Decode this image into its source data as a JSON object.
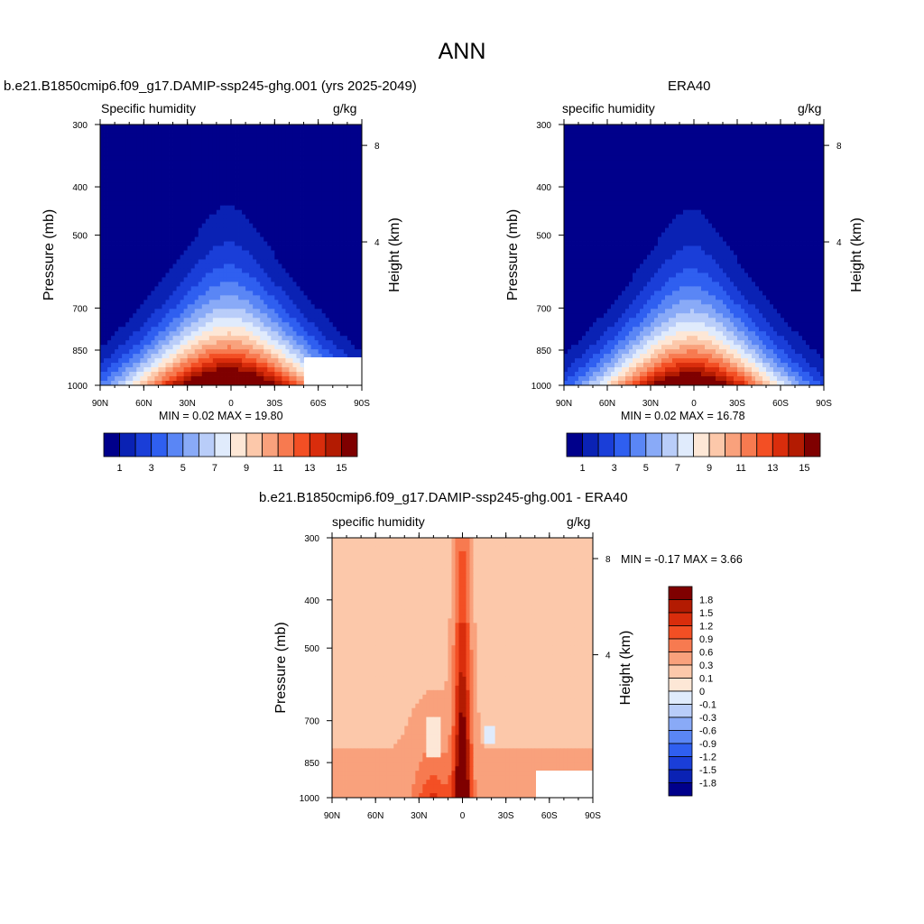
{
  "figure": {
    "title": "ANN",
    "panels": [
      {
        "id": "model",
        "title": "b.e21.B1850cmip6.f09_g17.DAMIP-ssp245-ghg.001 (yrs 2025-2049)",
        "left_label": "Specific humidity",
        "right_label": "g/kg",
        "y_axis_label": "Pressure (mb)",
        "right_axis_label": "Height (km)",
        "minmax_text": "MIN =   0.02  MAX =  19.80"
      },
      {
        "id": "obs",
        "title": "ERA40",
        "left_label": "specific humidity",
        "right_label": "g/kg",
        "y_axis_label": "Pressure (mb)",
        "right_axis_label": "Height (km)",
        "minmax_text": "MIN =   0.02  MAX =  16.78"
      },
      {
        "id": "diff",
        "title": "b.e21.B1850cmip6.f09_g17.DAMIP-ssp245-ghg.001 - ERA40",
        "left_label": "specific humidity",
        "right_label": "g/kg",
        "y_axis_label": "Pressure (mb)",
        "right_axis_label": "Height (km)",
        "minmax_text": "MIN =  -0.17  MAX =   3.66"
      }
    ]
  },
  "chart_data": [
    {
      "type": "heatmap",
      "panel": "model",
      "x_ticks": [
        "90N",
        "60N",
        "30N",
        "0",
        "30S",
        "60S",
        "90S"
      ],
      "y_ticks": [
        300,
        400,
        500,
        700,
        850,
        1000
      ],
      "y_scale": "log pressure",
      "right_ticks": [
        8,
        4
      ],
      "levels": [
        1,
        2,
        3,
        4,
        5,
        6,
        7,
        8,
        9,
        10,
        11,
        12,
        13,
        14,
        15
      ],
      "colorbar_labels": [
        "1",
        "3",
        "5",
        "7",
        "9",
        "11",
        "13",
        "15"
      ],
      "min": 0.02,
      "max": 19.8,
      "peak_profile": [
        [
          300,
          -3
        ],
        [
          400,
          -1
        ],
        [
          500,
          1
        ],
        [
          700,
          4
        ],
        [
          850,
          8
        ],
        [
          1000,
          15.5
        ]
      ]
    },
    {
      "type": "heatmap",
      "panel": "obs",
      "x_ticks": [
        "90N",
        "60N",
        "30N",
        "0",
        "30S",
        "60S",
        "90S"
      ],
      "y_ticks": [
        300,
        400,
        500,
        700,
        850,
        1000
      ],
      "y_scale": "log pressure",
      "right_ticks": [
        8,
        4
      ],
      "levels": [
        1,
        2,
        3,
        4,
        5,
        6,
        7,
        8,
        9,
        10,
        11,
        12,
        13,
        14,
        15
      ],
      "colorbar_labels": [
        "1",
        "3",
        "5",
        "7",
        "9",
        "11",
        "13",
        "15"
      ],
      "min": 0.02,
      "max": 16.78,
      "peak_profile": [
        [
          300,
          -3
        ],
        [
          400,
          -1
        ],
        [
          500,
          1
        ],
        [
          700,
          4
        ],
        [
          850,
          7.5
        ],
        [
          1000,
          15
        ]
      ]
    },
    {
      "type": "heatmap",
      "panel": "diff",
      "x_ticks": [
        "90N",
        "60N",
        "30N",
        "0",
        "30S",
        "60S",
        "90S"
      ],
      "y_ticks": [
        300,
        400,
        500,
        700,
        850,
        1000
      ],
      "y_scale": "log pressure",
      "right_ticks": [
        8,
        4
      ],
      "levels": [
        -1.8,
        -1.5,
        -1.2,
        -0.9,
        -0.6,
        -0.3,
        -0.1,
        0,
        0.1,
        0.3,
        0.6,
        0.9,
        1.2,
        1.5,
        1.8
      ],
      "colorbar_labels": [
        "1.8",
        "1.5",
        "1.2",
        "0.9",
        "0.6",
        "0.3",
        "0.1",
        "0",
        "-0.1",
        "-0.3",
        "-0.6",
        "-0.9",
        "-1.2",
        "-1.5",
        "-1.8"
      ],
      "min": -0.17,
      "max": 3.66
    }
  ],
  "colors": {
    "palette": [
      "#00008b",
      "#0a22b4",
      "#1a3ed8",
      "#2f5ff0",
      "#5a86f5",
      "#89aaf7",
      "#b9cdf9",
      "#e0ebfc",
      "#fde7d6",
      "#fcc8aa",
      "#f9a17c",
      "#f77a50",
      "#f34f24",
      "#d92d0c",
      "#b31b02",
      "#7f0000"
    ]
  }
}
